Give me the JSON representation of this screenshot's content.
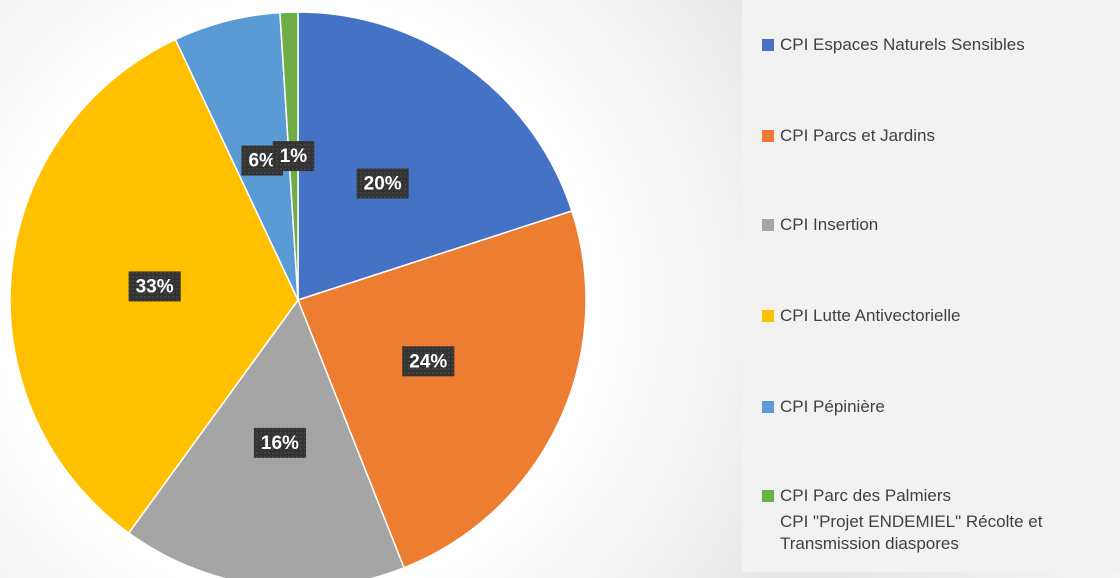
{
  "chart_data": {
    "type": "pie",
    "categories": [
      "CPI Espaces Naturels Sensibles",
      "CPI Parcs et Jardins",
      "CPI Insertion",
      "CPI Lutte Antivectorielle",
      "CPI Pépinière",
      "CPI Parc des Palmiers",
      "CPI \"Projet ENDEMIEL\" Récolte et Transmission diaspores"
    ],
    "values": [
      20,
      24,
      16,
      33,
      6,
      1,
      null
    ],
    "value_labels": [
      "20%",
      "24%",
      "16%",
      "33%",
      "6%",
      "1%",
      null
    ],
    "colors": [
      "#4472c4",
      "#ed7d31",
      "#a5a5a5",
      "#ffc000",
      "#5b9bd5",
      "#70ad47",
      null
    ],
    "legend": "right"
  }
}
